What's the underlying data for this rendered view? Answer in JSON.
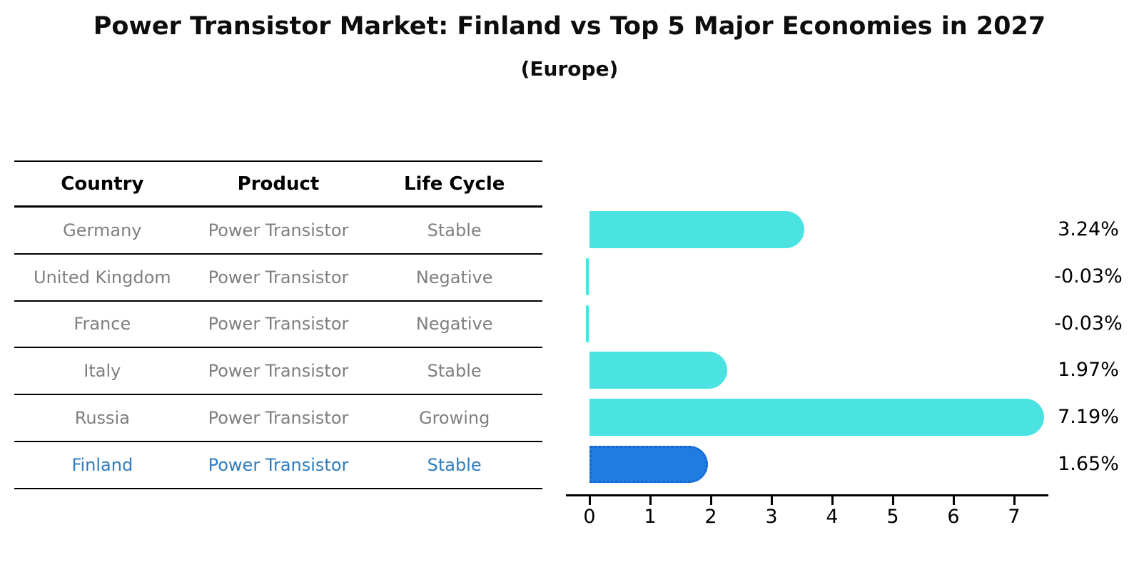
{
  "title": "Power Transistor Market: Finland vs Top 5 Major Economies in 2027",
  "subtitle": "(Europe)",
  "colors": {
    "bar_default": "#4AE3E2",
    "bar_highlight": "#1F7CE0",
    "bar_highlight_border": "#1565D5",
    "highlight_row_text": "#2D7CC1",
    "row_text": "#7F7F7F",
    "axis": "#000000"
  },
  "table": {
    "headers": [
      "Country",
      "Product",
      "Life Cycle"
    ],
    "rows": [
      {
        "country": "Germany",
        "product": "Power Transistor",
        "life_cycle": "Stable",
        "highlight": false
      },
      {
        "country": "United Kingdom",
        "product": "Power Transistor",
        "life_cycle": "Negative",
        "highlight": false
      },
      {
        "country": "France",
        "product": "Power Transistor",
        "life_cycle": "Negative",
        "highlight": false
      },
      {
        "country": "Italy",
        "product": "Power Transistor",
        "life_cycle": "Stable",
        "highlight": false
      },
      {
        "country": "Russia",
        "product": "Power Transistor",
        "life_cycle": "Growing",
        "highlight": false
      },
      {
        "country": "Finland",
        "product": "Power Transistor",
        "life_cycle": "Stable",
        "highlight": true
      }
    ]
  },
  "chart_data": {
    "type": "bar",
    "orientation": "horizontal",
    "title": "Power Transistor Market: Finland vs Top 5 Major Economies in 2027 (Europe)",
    "categories": [
      "Germany",
      "United Kingdom",
      "France",
      "Italy",
      "Russia",
      "Finland"
    ],
    "values": [
      3.24,
      -0.03,
      -0.03,
      1.97,
      7.19,
      1.65
    ],
    "value_labels": [
      "3.24%",
      "-0.03%",
      "-0.03%",
      "1.97%",
      "7.19%",
      "1.65%"
    ],
    "xlabel": "",
    "ylabel": "",
    "xticks": [
      0,
      1,
      2,
      3,
      4,
      5,
      6,
      7
    ],
    "xlim": [
      -0.39,
      7.55
    ],
    "highlight_index": 5,
    "grid": false,
    "legend": false,
    "bar_cap_style": "rounded"
  }
}
